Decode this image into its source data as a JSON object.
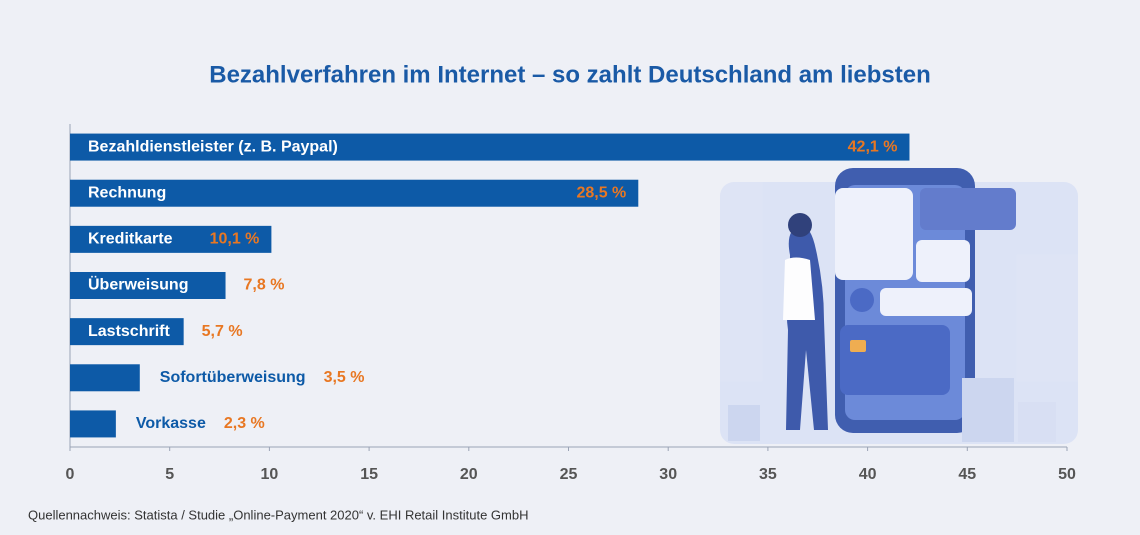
{
  "chart_data": {
    "type": "hbar",
    "title": "Bezahlverfahren im Internet – so zahlt Deutschland am liebsten",
    "categories": [
      "Bezahldienstleister (z. B. Paypal)",
      "Rechnung",
      "Kreditkarte",
      "Überweisung",
      "Lastschrift",
      "Sofortüberweisung",
      "Vorkasse"
    ],
    "values": [
      42.1,
      28.5,
      10.1,
      7.8,
      5.7,
      3.5,
      2.3
    ],
    "value_labels": [
      "42,1 %",
      "28,5 %",
      "10,1 %",
      "7,8 %",
      "5,7 %",
      "3,5 %",
      "2,3 %"
    ],
    "color": "#0d5aa7",
    "label_color": "#e87722",
    "xlim": [
      0,
      50
    ],
    "xticks": [
      0,
      5,
      10,
      15,
      20,
      25,
      30,
      35,
      40,
      45,
      50
    ],
    "source": "Quellennachweis: Statista / Studie „Online-Payment 2020“ v. EHI Retail Institute GmbH"
  }
}
